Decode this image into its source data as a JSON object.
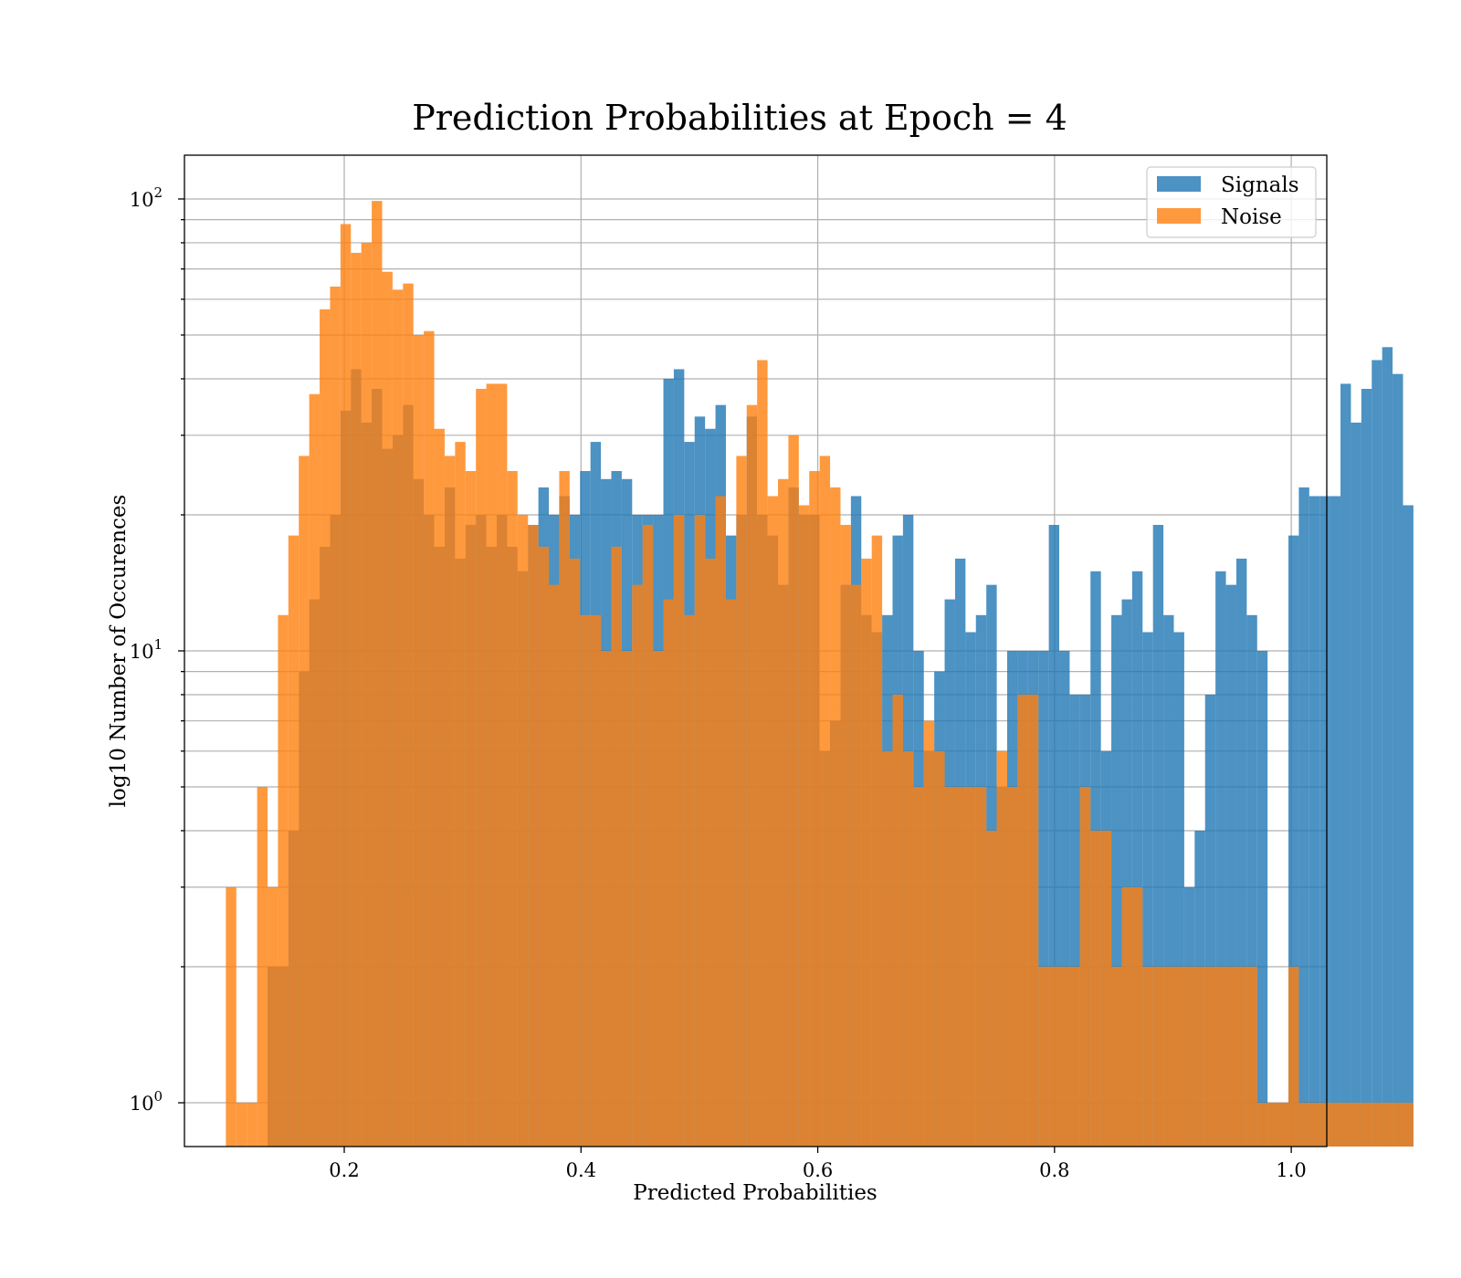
{
  "chart_data": {
    "type": "histogram",
    "title": "Prediction Probabilities at Epoch = 4",
    "xlabel": "Predicted Probabilities",
    "ylabel": "log10 Number of Occurences",
    "xlim": [
      0.065,
      1.03
    ],
    "ylim": [
      0.8,
      125
    ],
    "yscale": "log",
    "xticks": [
      0.2,
      0.4,
      0.6,
      0.8,
      1.0
    ],
    "xtick_labels": [
      "0.2",
      "0.4",
      "0.6",
      "0.8",
      "1.0"
    ],
    "yticks": [
      1,
      10,
      100
    ],
    "ytick_labels": [
      {
        "base": "10",
        "exp": "0"
      },
      {
        "base": "10",
        "exp": "1"
      },
      {
        "base": "10",
        "exp": "2"
      }
    ],
    "grid": true,
    "legend": {
      "position": "top-right"
    },
    "bin_start": 0.1,
    "bin_width": 0.0088,
    "series": [
      {
        "name": "Signals",
        "color": "#1f77b4",
        "opacity": 0.8,
        "values": [
          0,
          0,
          0,
          0,
          2,
          2,
          4,
          9,
          13,
          17,
          20,
          34,
          42,
          32,
          38,
          28,
          30,
          35,
          24,
          20,
          17,
          23,
          16,
          19,
          20,
          17,
          20,
          17,
          15,
          19,
          23,
          20,
          22,
          20,
          25,
          29,
          24,
          25,
          24,
          20,
          20,
          20,
          40,
          42,
          29,
          33,
          31,
          35,
          18,
          20,
          33,
          20,
          18,
          14,
          23,
          20,
          20,
          6,
          7,
          14,
          22,
          12,
          11,
          12,
          18,
          20,
          10,
          6,
          9,
          13,
          16,
          11,
          12,
          14,
          5,
          10,
          10,
          10,
          10,
          19,
          10,
          8,
          8,
          15,
          6,
          12,
          13,
          15,
          11,
          19,
          12,
          11,
          3,
          4,
          8,
          15,
          14,
          16,
          12,
          10,
          1,
          1,
          18,
          23,
          22,
          22,
          22,
          39,
          32,
          38,
          44,
          47,
          41,
          21
        ]
      },
      {
        "name": "Noise",
        "color": "#ff7f0e",
        "opacity": 0.8,
        "values": [
          3,
          1,
          1,
          5,
          3,
          12,
          18,
          27,
          37,
          57,
          64,
          88,
          76,
          80,
          99,
          69,
          63,
          65,
          50,
          51,
          31,
          27,
          29,
          25,
          38,
          39,
          39,
          25,
          20,
          19,
          17,
          14,
          25,
          16,
          12,
          12,
          10,
          17,
          10,
          14,
          19,
          10,
          13,
          20,
          12,
          20,
          16,
          22,
          13,
          27,
          35,
          44,
          22,
          24,
          30,
          21,
          25,
          27,
          23,
          19,
          14,
          16,
          18,
          6,
          8,
          6,
          5,
          7,
          6,
          5,
          5,
          5,
          5,
          4,
          6,
          5,
          8,
          8,
          2,
          2,
          2,
          2,
          5,
          4,
          4,
          2,
          3,
          3,
          2,
          2,
          2,
          2,
          2,
          2,
          2,
          2,
          2,
          2,
          2,
          1,
          1,
          1,
          2,
          1,
          1,
          1,
          1,
          1,
          1,
          1,
          1,
          1,
          1,
          1
        ]
      }
    ]
  }
}
